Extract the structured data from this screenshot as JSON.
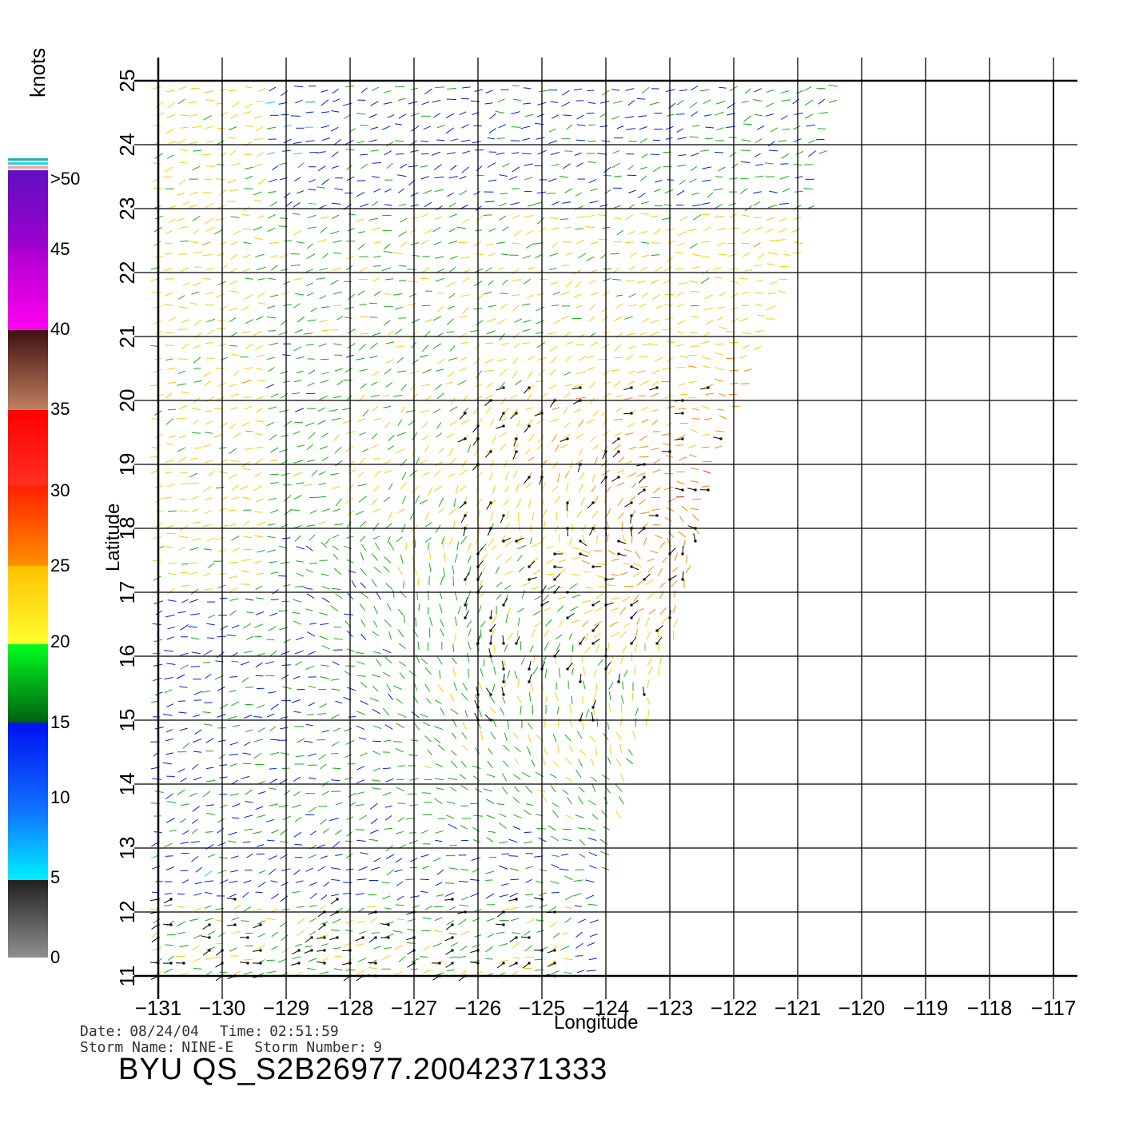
{
  "colorbar": {
    "units": "knots",
    "labels": [
      ">50",
      "45",
      "40",
      "35",
      "30",
      "25",
      "20",
      "15",
      "10",
      "5",
      "0"
    ]
  },
  "axes": {
    "xlabel": "Longitude",
    "ylabel": "Latitude",
    "x_ticks": [
      "-131",
      "-130",
      "-129",
      "-128",
      "-127",
      "-126",
      "-125",
      "-124",
      "-123",
      "-122",
      "-121",
      "-120",
      "-119",
      "-118",
      "-117"
    ],
    "y_ticks": [
      "11",
      "12",
      "13",
      "14",
      "15",
      "16",
      "17",
      "18",
      "19",
      "20",
      "21",
      "22",
      "23",
      "24",
      "25"
    ],
    "lon_range": [
      -131,
      -117
    ],
    "lat_range": [
      11,
      25
    ]
  },
  "metadata": {
    "date_label": "Date:",
    "date": "08/24/04",
    "time_label": "Time:",
    "time": "02:51:59",
    "storm_name_label": "Storm Name:",
    "storm_name": "NINE-E",
    "storm_number_label": "Storm Number:",
    "storm_number": "9",
    "product": "BYU QS_S2B26977.20042371333"
  },
  "swath": {
    "description_free": true,
    "boundary": [
      [
        -131,
        11
      ],
      [
        -124,
        11
      ],
      [
        -124,
        12.3
      ],
      [
        -123,
        15.9
      ],
      [
        -122,
        19.6
      ],
      [
        -121,
        21.8
      ],
      [
        -120.2,
        25
      ],
      [
        -131,
        25
      ]
    ],
    "colors": {
      "calm": "#777777",
      "cyan": "#00d8e8",
      "blue": "#0022dd",
      "green": "#12b012",
      "yellow": "#f0d000",
      "orange": "#ff8800",
      "red": "#e81010",
      "flag": "#000000"
    }
  }
}
